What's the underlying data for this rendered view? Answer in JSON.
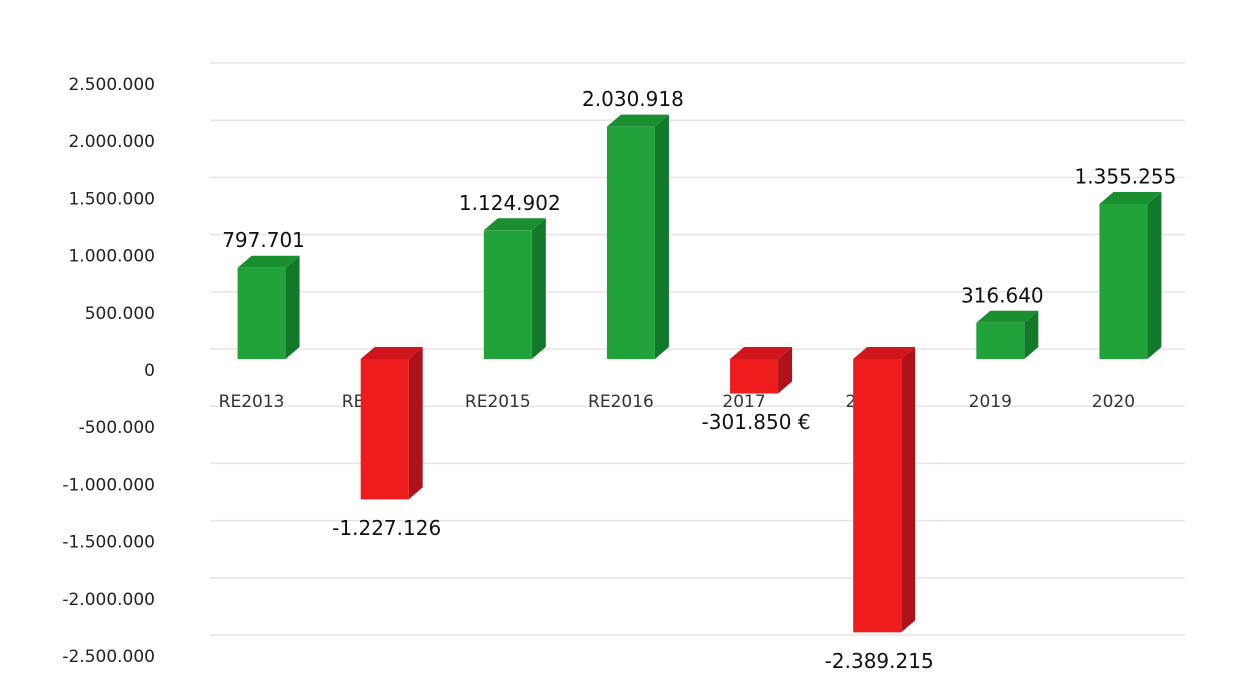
{
  "chart_data": {
    "type": "bar3d",
    "categories": [
      "RE2013",
      "RE2014",
      "RE2015",
      "RE2016",
      "2017",
      "2018",
      "2019",
      "2020"
    ],
    "values": [
      797701,
      -1227126,
      1124902,
      2030918,
      -301850,
      -2389215,
      316640,
      1355255
    ],
    "value_labels": [
      "797.701",
      "-1.227.126",
      "1.124.902",
      "2.030.918",
      "-301.850 €",
      "-2.389.215",
      "316.640",
      "1.355.255"
    ],
    "positive_colors": {
      "front": "#22a33a",
      "side": "#12782a",
      "top": "#1a8f30"
    },
    "negative_colors": {
      "front": "#ee1c1c",
      "side": "#b0121a",
      "top": "#d0161c"
    },
    "ylim": [
      -2500000,
      2500000
    ],
    "yticks": [
      {
        "value": -2500000,
        "label": "-2.500.000"
      },
      {
        "value": -2000000,
        "label": "-2.000.000"
      },
      {
        "value": -1500000,
        "label": "-1.500.000"
      },
      {
        "value": -1000000,
        "label": "-1.000.000"
      },
      {
        "value": -500000,
        "label": "-500.000"
      },
      0,
      {
        "value": 500000,
        "label": "500.000"
      },
      {
        "value": 1000000,
        "label": "1.000.000"
      },
      {
        "value": 1500000,
        "label": "1.500.000"
      },
      {
        "value": 2000000,
        "label": "2.000.000"
      },
      {
        "value": 2500000,
        "label": "2.500.000"
      }
    ],
    "grid": true
  }
}
